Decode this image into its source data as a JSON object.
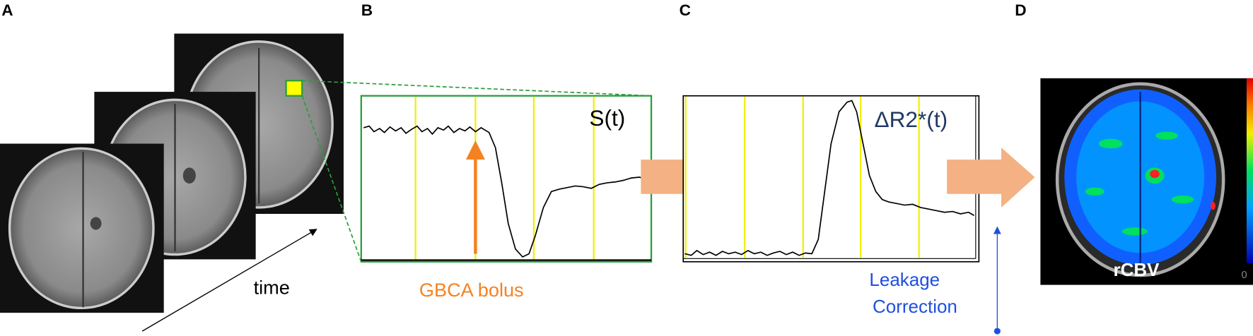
{
  "panels": {
    "a": {
      "label": "A",
      "caption": "time"
    },
    "b": {
      "label": "B",
      "curve_label": "S(t)",
      "annotation": "GBCA bolus"
    },
    "c": {
      "label": "C",
      "curve_label": "ΔR2*(t)",
      "annotation_line1": "Leakage",
      "annotation_line2": "Correction"
    },
    "d": {
      "label": "D",
      "map_label": "rCBV",
      "colorbar_min": "0"
    }
  }
}
